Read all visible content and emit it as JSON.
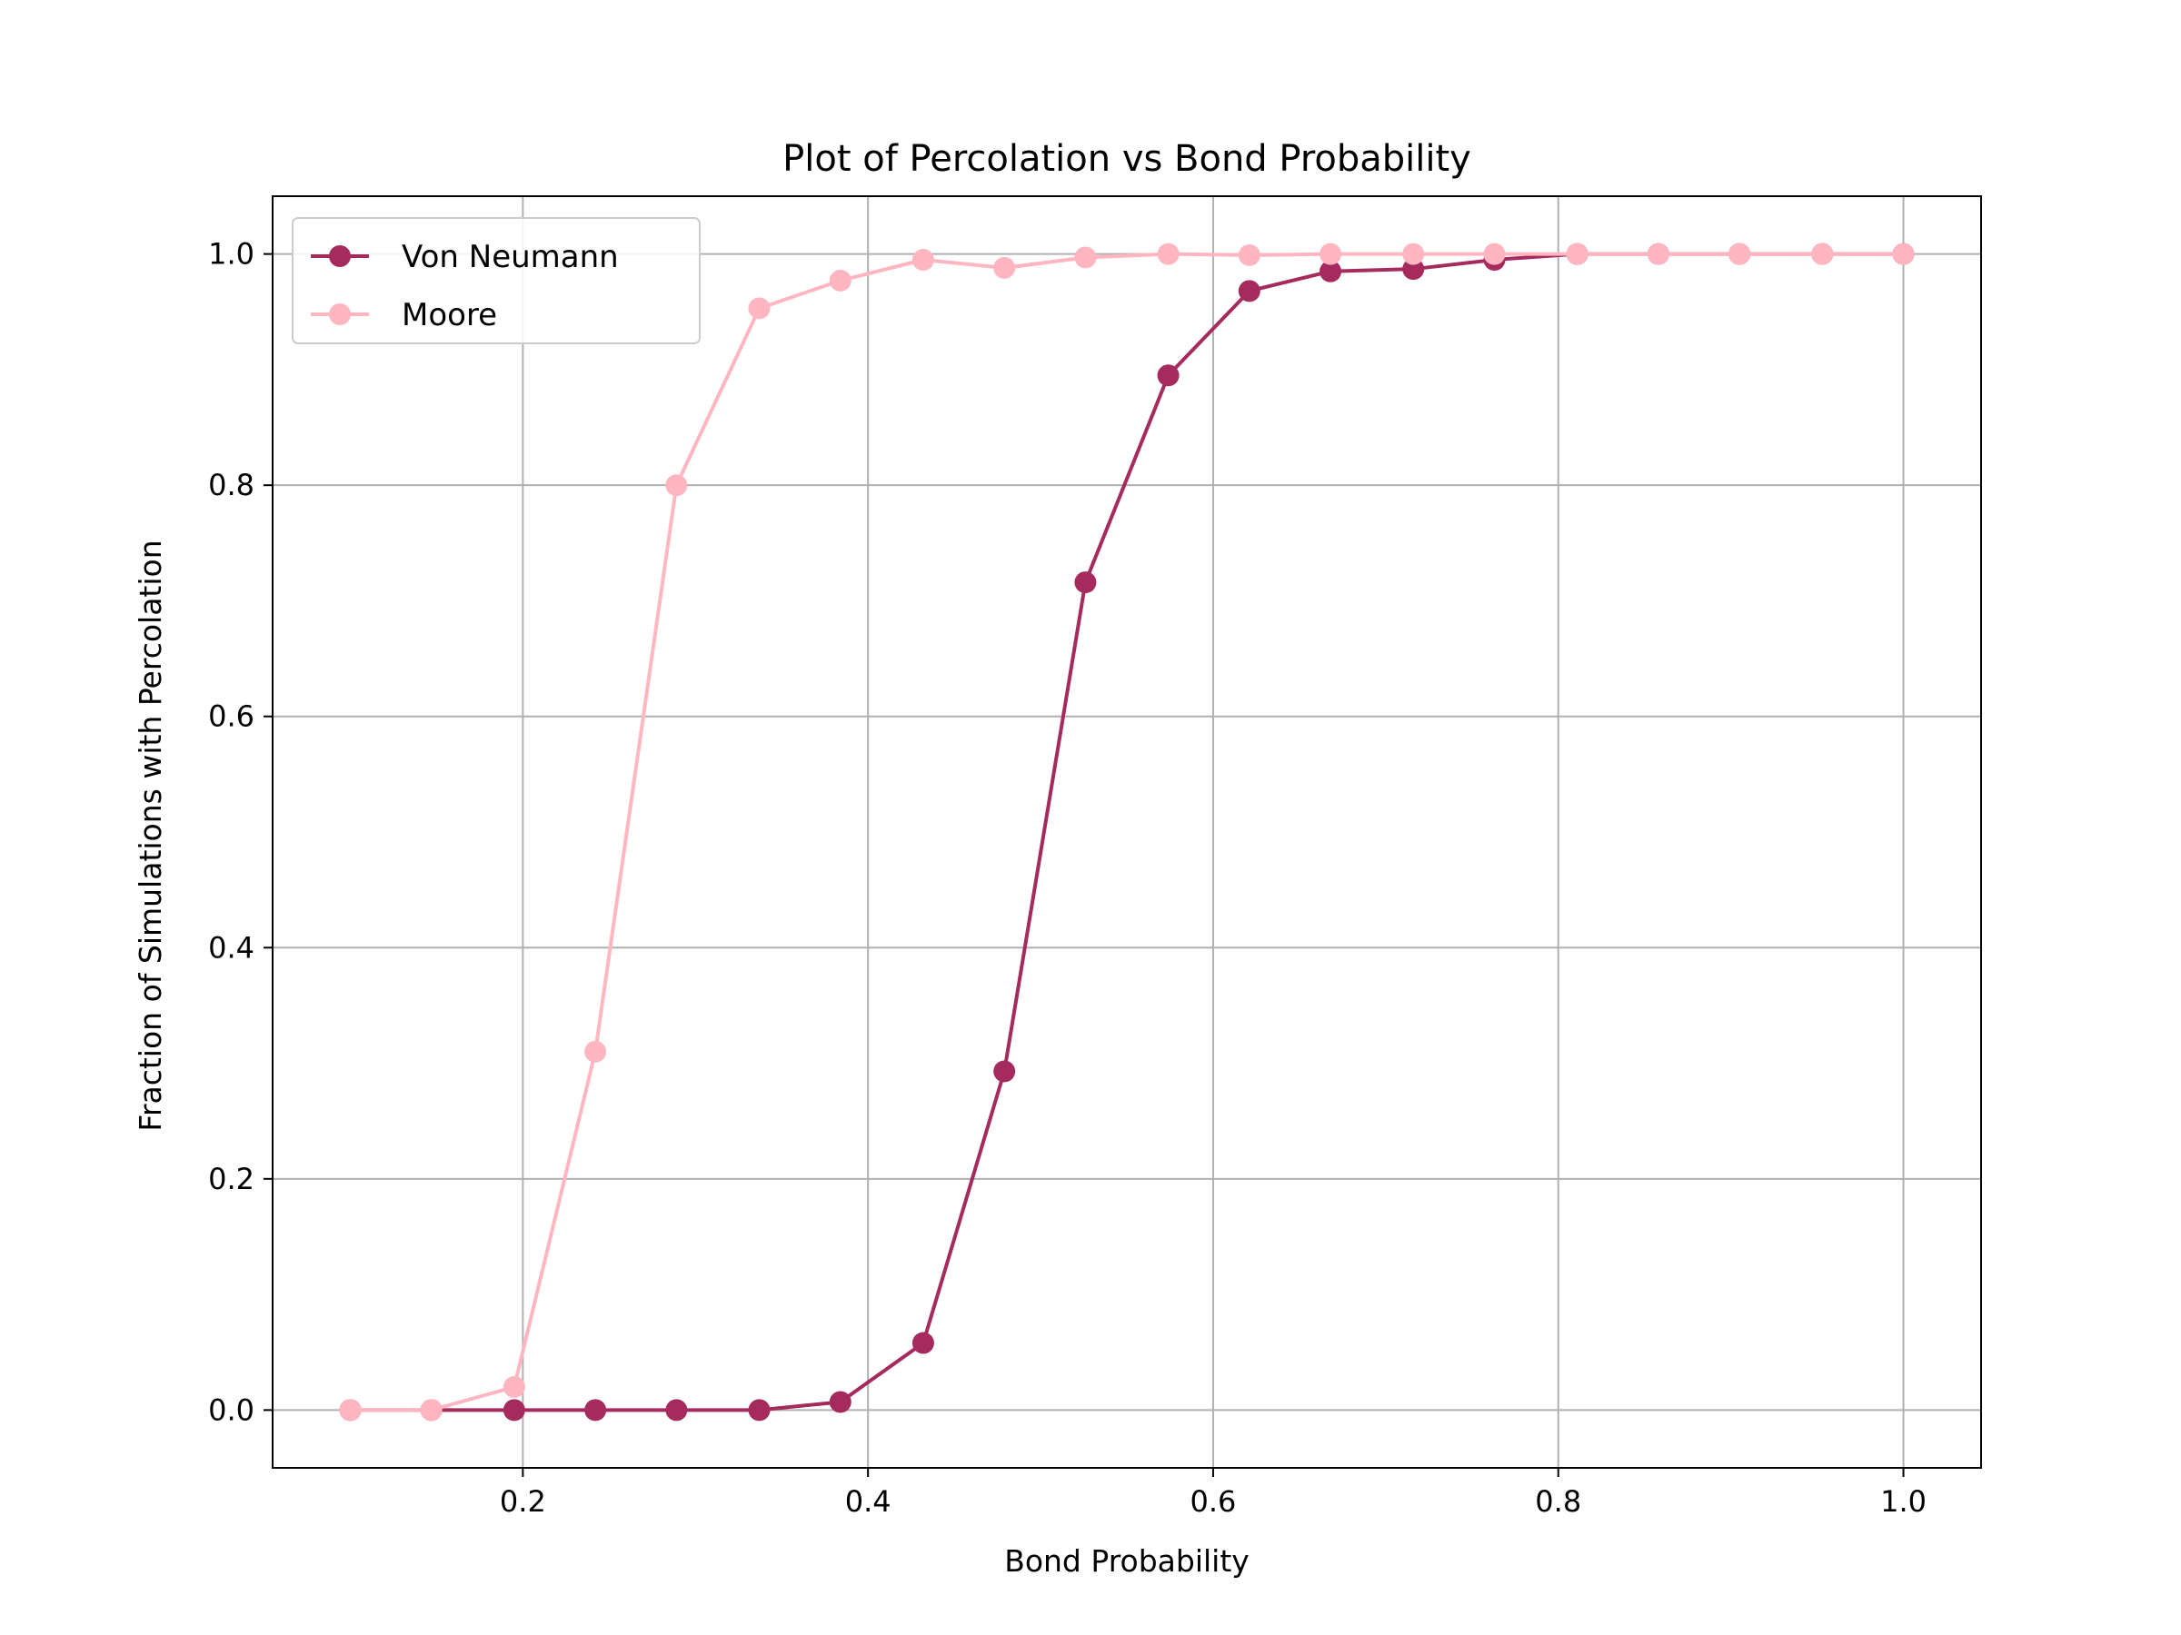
{
  "chart_data": {
    "type": "line",
    "title": "Plot of Percolation vs Bond Probability",
    "xlabel": "Bond Probability",
    "ylabel": "Fraction of Simulations with Percolation",
    "xlim": [
      0.055,
      1.045
    ],
    "ylim": [
      -0.05,
      1.05
    ],
    "xticks": [
      0.2,
      0.4,
      0.6,
      0.8,
      1.0
    ],
    "xtick_labels": [
      "0.2",
      "0.4",
      "0.6",
      "0.8",
      "1.0"
    ],
    "yticks": [
      0.0,
      0.2,
      0.4,
      0.6,
      0.8,
      1.0
    ],
    "ytick_labels": [
      "0.0",
      "0.2",
      "0.4",
      "0.6",
      "0.8",
      "1.0"
    ],
    "grid": true,
    "legend_position": "top-left",
    "x": [
      0.1,
      0.147,
      0.195,
      0.242,
      0.289,
      0.337,
      0.384,
      0.432,
      0.479,
      0.526,
      0.574,
      0.621,
      0.668,
      0.716,
      0.763,
      0.811,
      0.858,
      0.905,
      0.953,
      1.0
    ],
    "series": [
      {
        "name": "Von Neumann",
        "color": "#a52a5e",
        "marker": "circle",
        "values": [
          0.0,
          0.0,
          0.0,
          0.0,
          0.0,
          0.0,
          0.007,
          0.058,
          0.293,
          0.716,
          0.895,
          0.968,
          0.985,
          0.987,
          0.995,
          1.0,
          1.0,
          1.0,
          1.0,
          1.0
        ]
      },
      {
        "name": "Moore",
        "color": "#ffb6c1",
        "marker": "circle",
        "values": [
          0.0,
          0.0,
          0.02,
          0.31,
          0.8,
          0.953,
          0.977,
          0.995,
          0.988,
          0.997,
          1.0,
          0.999,
          1.0,
          1.0,
          1.0,
          1.0,
          1.0,
          1.0,
          1.0,
          1.0
        ]
      }
    ]
  }
}
